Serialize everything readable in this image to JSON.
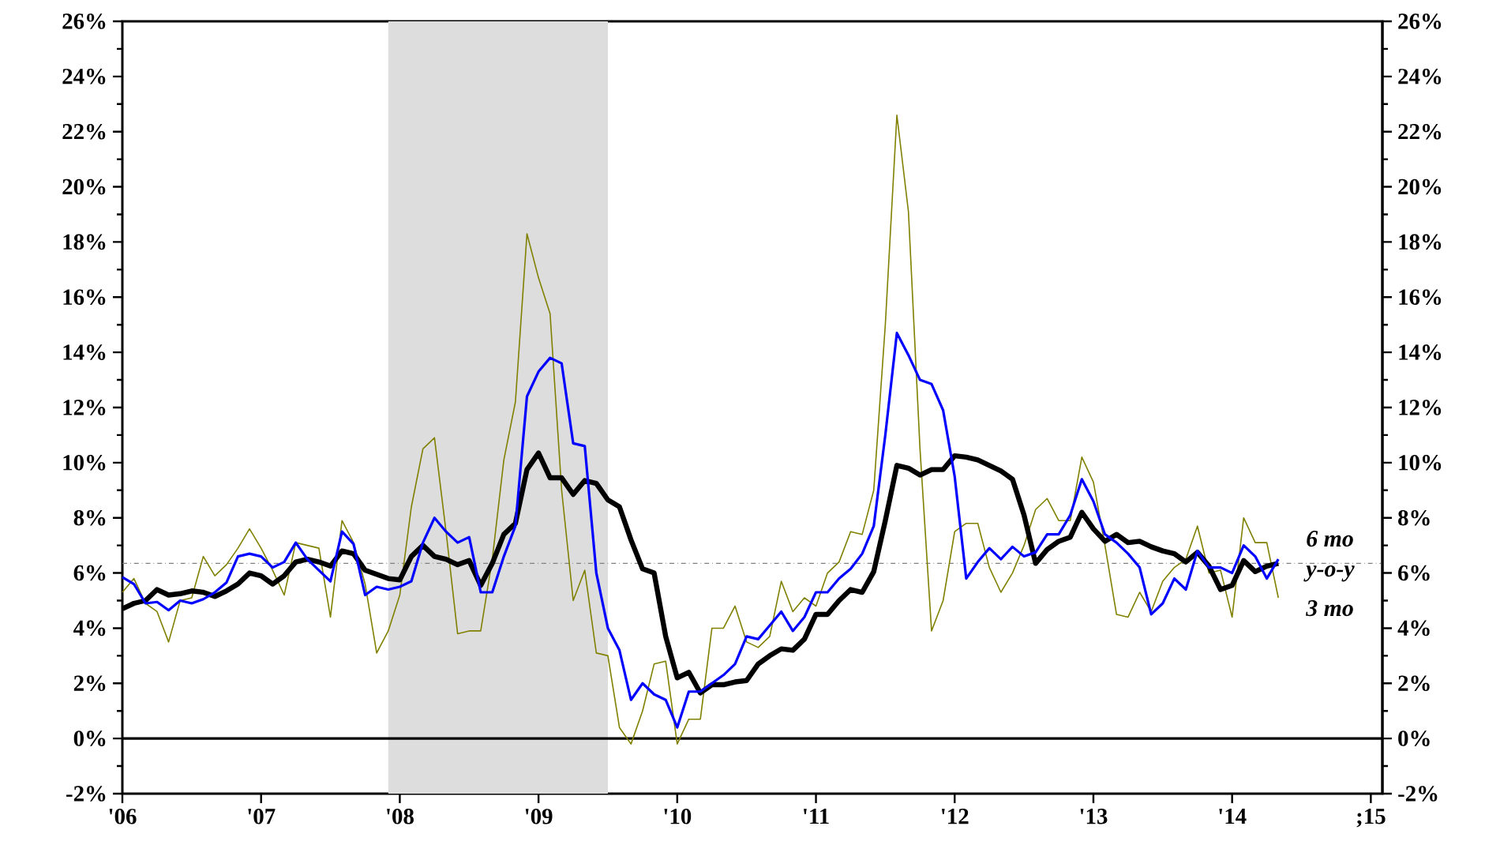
{
  "chart_data": {
    "type": "line",
    "x": [
      "2006-01",
      "2006-02",
      "2006-03",
      "2006-04",
      "2006-05",
      "2006-06",
      "2006-07",
      "2006-08",
      "2006-09",
      "2006-10",
      "2006-11",
      "2006-12",
      "2007-01",
      "2007-02",
      "2007-03",
      "2007-04",
      "2007-05",
      "2007-06",
      "2007-07",
      "2007-08",
      "2007-09",
      "2007-10",
      "2007-11",
      "2007-12",
      "2008-01",
      "2008-02",
      "2008-03",
      "2008-04",
      "2008-05",
      "2008-06",
      "2008-07",
      "2008-08",
      "2008-09",
      "2008-10",
      "2008-11",
      "2008-12",
      "2009-01",
      "2009-02",
      "2009-03",
      "2009-04",
      "2009-05",
      "2009-06",
      "2009-07",
      "2009-08",
      "2009-09",
      "2009-10",
      "2009-11",
      "2009-12",
      "2010-01",
      "2010-02",
      "2010-03",
      "2010-04",
      "2010-05",
      "2010-06",
      "2010-07",
      "2010-08",
      "2010-09",
      "2010-10",
      "2010-11",
      "2010-12",
      "2011-01",
      "2011-02",
      "2011-03",
      "2011-04",
      "2011-05",
      "2011-06",
      "2011-07",
      "2011-08",
      "2011-09",
      "2011-10",
      "2011-11",
      "2011-12",
      "2012-01",
      "2012-02",
      "2012-03",
      "2012-04",
      "2012-05",
      "2012-06",
      "2012-07",
      "2012-08",
      "2012-09",
      "2012-10",
      "2012-11",
      "2012-12",
      "2013-01",
      "2013-02",
      "2013-03",
      "2013-04",
      "2013-05",
      "2013-06",
      "2013-07",
      "2013-08",
      "2013-09",
      "2013-10",
      "2013-11",
      "2013-12",
      "2014-01",
      "2014-02",
      "2014-03",
      "2014-04",
      "2014-05"
    ],
    "series": [
      {
        "name": "6 mo",
        "color": "#0000ff",
        "values": [
          5.85,
          5.6,
          4.9,
          4.95,
          4.65,
          5.0,
          4.9,
          5.05,
          5.3,
          5.65,
          6.6,
          6.7,
          6.6,
          6.2,
          6.4,
          7.1,
          6.5,
          6.1,
          5.7,
          7.5,
          7.05,
          5.2,
          5.5,
          5.4,
          5.5,
          5.7,
          7.1,
          8.0,
          7.5,
          7.1,
          7.3,
          5.3,
          5.3,
          6.6,
          7.7,
          12.4,
          13.3,
          13.8,
          13.6,
          10.7,
          10.6,
          6.0,
          4.0,
          3.2,
          1.4,
          2.0,
          1.6,
          1.4,
          0.4,
          1.7,
          1.7,
          2.0,
          2.3,
          2.7,
          3.7,
          3.6,
          4.1,
          4.6,
          3.9,
          4.4,
          5.3,
          5.3,
          5.8,
          6.15,
          6.7,
          7.7,
          11.0,
          14.7,
          13.9,
          13.0,
          12.85,
          11.9,
          9.5,
          5.8,
          6.4,
          6.9,
          6.5,
          6.95,
          6.6,
          6.75,
          7.4,
          7.4,
          8.1,
          9.4,
          8.6,
          7.4,
          7.1,
          6.7,
          6.2,
          4.5,
          4.9,
          5.8,
          5.4,
          6.8,
          6.2,
          6.2,
          6.0,
          7.0,
          6.6,
          5.8,
          6.5
        ]
      },
      {
        "name": "y-o-y",
        "color": "#000000",
        "values": [
          4.7,
          4.9,
          5.0,
          5.4,
          5.2,
          5.25,
          5.35,
          5.3,
          5.15,
          5.35,
          5.6,
          6.0,
          5.9,
          5.6,
          5.9,
          6.4,
          6.5,
          6.4,
          6.25,
          6.8,
          6.7,
          6.1,
          5.95,
          5.8,
          5.75,
          6.6,
          7.0,
          6.6,
          6.5,
          6.3,
          6.45,
          5.55,
          6.35,
          7.4,
          7.8,
          9.75,
          10.35,
          9.45,
          9.45,
          8.85,
          9.35,
          9.25,
          8.65,
          8.4,
          7.2,
          6.15,
          6.0,
          3.7,
          2.2,
          2.4,
          1.65,
          1.95,
          1.95,
          2.05,
          2.1,
          2.7,
          3.0,
          3.25,
          3.2,
          3.6,
          4.5,
          4.5,
          5.0,
          5.4,
          5.3,
          6.05,
          7.9,
          9.9,
          9.8,
          9.55,
          9.75,
          9.75,
          10.25,
          10.2,
          10.1,
          9.9,
          9.7,
          9.4,
          8.1,
          6.35,
          6.85,
          7.15,
          7.3,
          8.2,
          7.6,
          7.15,
          7.4,
          7.1,
          7.15,
          6.95,
          6.8,
          6.7,
          6.4,
          6.75,
          6.25,
          5.4,
          5.55,
          6.45,
          6.05,
          6.25,
          6.35
        ]
      },
      {
        "name": "3 mo",
        "color": "#808000",
        "values": [
          5.3,
          5.8,
          4.9,
          4.6,
          3.5,
          5.0,
          5.1,
          6.6,
          5.9,
          6.3,
          6.9,
          7.6,
          6.9,
          6.1,
          5.2,
          7.1,
          7.0,
          6.9,
          4.4,
          7.9,
          7.1,
          5.6,
          3.1,
          3.9,
          5.2,
          8.4,
          10.5,
          10.9,
          7.5,
          3.8,
          3.9,
          3.9,
          6.5,
          10.1,
          12.2,
          18.3,
          16.7,
          15.4,
          9.0,
          5.0,
          6.1,
          3.1,
          3.0,
          0.4,
          -0.2,
          1.0,
          2.7,
          2.8,
          -0.2,
          0.7,
          0.7,
          4.0,
          4.0,
          4.8,
          3.5,
          3.3,
          3.7,
          5.7,
          4.6,
          5.1,
          4.8,
          6.0,
          6.4,
          7.5,
          7.4,
          9.0,
          15.0,
          22.6,
          19.1,
          10.5,
          3.9,
          5.0,
          7.5,
          7.8,
          7.8,
          6.2,
          5.3,
          6.0,
          7.0,
          8.3,
          8.7,
          7.9,
          7.9,
          10.2,
          9.3,
          7.0,
          4.5,
          4.4,
          5.3,
          4.6,
          5.7,
          6.2,
          6.5,
          7.7,
          6.0,
          6.1,
          4.4,
          8.0,
          7.1,
          7.1,
          5.1
        ]
      }
    ],
    "xlim": [
      "2006-01",
      "2015-02"
    ],
    "xticks": [
      {
        "value": "2006-01",
        "label": "'06"
      },
      {
        "value": "2007-01",
        "label": "'07"
      },
      {
        "value": "2008-01",
        "label": "'08"
      },
      {
        "value": "2009-01",
        "label": "'09"
      },
      {
        "value": "2010-01",
        "label": "'10"
      },
      {
        "value": "2011-01",
        "label": "'11"
      },
      {
        "value": "2012-01",
        "label": "'12"
      },
      {
        "value": "2013-01",
        "label": "'13"
      },
      {
        "value": "2014-01",
        "label": "'14"
      },
      {
        "value": "2015-01",
        "label": ";15"
      }
    ],
    "ylim": [
      -2,
      26
    ],
    "yticks": [
      {
        "value": -2,
        "label": "-2%"
      },
      {
        "value": 0,
        "label": "0%"
      },
      {
        "value": 2,
        "label": "2%"
      },
      {
        "value": 4,
        "label": "4%"
      },
      {
        "value": 6,
        "label": "6%"
      },
      {
        "value": 8,
        "label": "8%"
      },
      {
        "value": 10,
        "label": "10%"
      },
      {
        "value": 12,
        "label": "12%"
      },
      {
        "value": 14,
        "label": "14%"
      },
      {
        "value": 16,
        "label": "16%"
      },
      {
        "value": 18,
        "label": "18%"
      },
      {
        "value": 20,
        "label": "20%"
      },
      {
        "value": 22,
        "label": "22%"
      },
      {
        "value": 24,
        "label": "24%"
      },
      {
        "value": 26,
        "label": "26%"
      }
    ],
    "y2lim": [
      -2,
      26
    ],
    "y2ticks": [
      {
        "value": -2,
        "label": "-2%"
      },
      {
        "value": 0,
        "label": "0%"
      },
      {
        "value": 2,
        "label": "2%"
      },
      {
        "value": 4,
        "label": "4%"
      },
      {
        "value": 6,
        "label": "6%"
      },
      {
        "value": 8,
        "label": "8%"
      },
      {
        "value": 10,
        "label": "10%"
      },
      {
        "value": 12,
        "label": "12%"
      },
      {
        "value": 14,
        "label": "14%"
      },
      {
        "value": 16,
        "label": "16%"
      },
      {
        "value": 18,
        "label": "18%"
      },
      {
        "value": 20,
        "label": "20%"
      },
      {
        "value": 22,
        "label": "22%"
      },
      {
        "value": 24,
        "label": "24%"
      },
      {
        "value": 26,
        "label": "26%"
      }
    ],
    "ref_lines": [
      {
        "axis": "y",
        "value": 0,
        "color": "#000000",
        "line_style": "solid"
      },
      {
        "axis": "y",
        "value": 6.35,
        "color": "#808080",
        "line_style": "dashdot"
      }
    ],
    "bands": [
      {
        "axis": "x",
        "from": "2007-12",
        "to": "2009-07",
        "color": "#dddddd"
      }
    ]
  }
}
